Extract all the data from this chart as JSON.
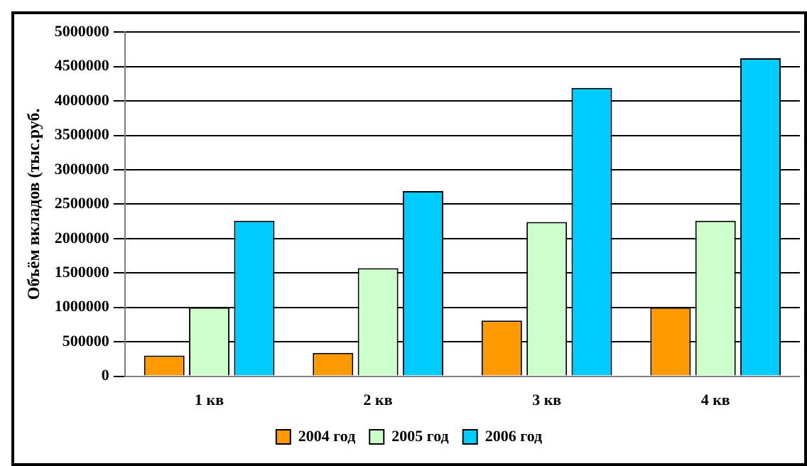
{
  "chart_data": {
    "type": "bar",
    "ylabel": "Объём вкладов (тыс.руб.",
    "categories": [
      "1 кв",
      "2 кв",
      "3 кв",
      "4 кв"
    ],
    "series": [
      {
        "name": "2004 год",
        "color": "#ff9900",
        "values": [
          300000,
          340000,
          810000,
          1000000
        ]
      },
      {
        "name": "2005 год",
        "color": "#ccffcc",
        "values": [
          1000000,
          1570000,
          2240000,
          2260000
        ]
      },
      {
        "name": "2006 год",
        "color": "#00ccff",
        "values": [
          2260000,
          2690000,
          4190000,
          4620000
        ]
      }
    ],
    "ylim": [
      0,
      5000000
    ],
    "yticks": [
      0,
      500000,
      1000000,
      1500000,
      2000000,
      2500000,
      3000000,
      3500000,
      4000000,
      4500000,
      5000000
    ],
    "grid": "y",
    "legend": "bottom"
  }
}
